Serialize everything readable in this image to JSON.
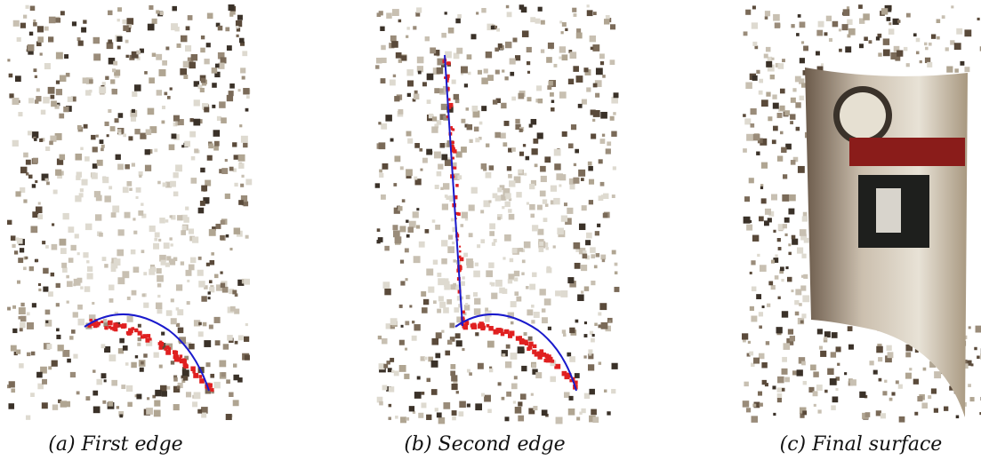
{
  "figure": {
    "captions": [
      "(a) First edge",
      "(b) Second edge",
      "(c) Final surface"
    ]
  }
}
